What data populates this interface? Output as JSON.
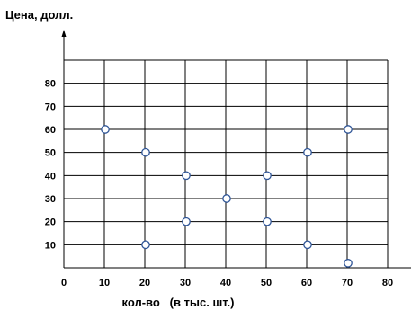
{
  "chart_data": {
    "type": "scatter",
    "ylabel": "Цена, долл.",
    "xlabel": "кол-во   (в тыс. шт.)",
    "x_ticks": [
      "0",
      "10",
      "20",
      "30",
      "40",
      "50",
      "60",
      "70",
      "80"
    ],
    "y_ticks": [
      "10",
      "20",
      "30",
      "40",
      "50",
      "60",
      "70",
      "80"
    ],
    "xlim": [
      0,
      80
    ],
    "ylim": [
      0,
      90
    ],
    "grid": true,
    "points": [
      {
        "x": 10,
        "y": 60
      },
      {
        "x": 20,
        "y": 50
      },
      {
        "x": 20,
        "y": 10
      },
      {
        "x": 30,
        "y": 40
      },
      {
        "x": 30,
        "y": 20
      },
      {
        "x": 40,
        "y": 30
      },
      {
        "x": 50,
        "y": 40
      },
      {
        "x": 50,
        "y": 20
      },
      {
        "x": 60,
        "y": 50
      },
      {
        "x": 60,
        "y": 10
      },
      {
        "x": 70,
        "y": 60
      },
      {
        "x": 70,
        "y": 2
      }
    ],
    "colors": {
      "point_fill": "#ffffff",
      "point_stroke": "#2f5597",
      "grid": "#000000"
    }
  }
}
